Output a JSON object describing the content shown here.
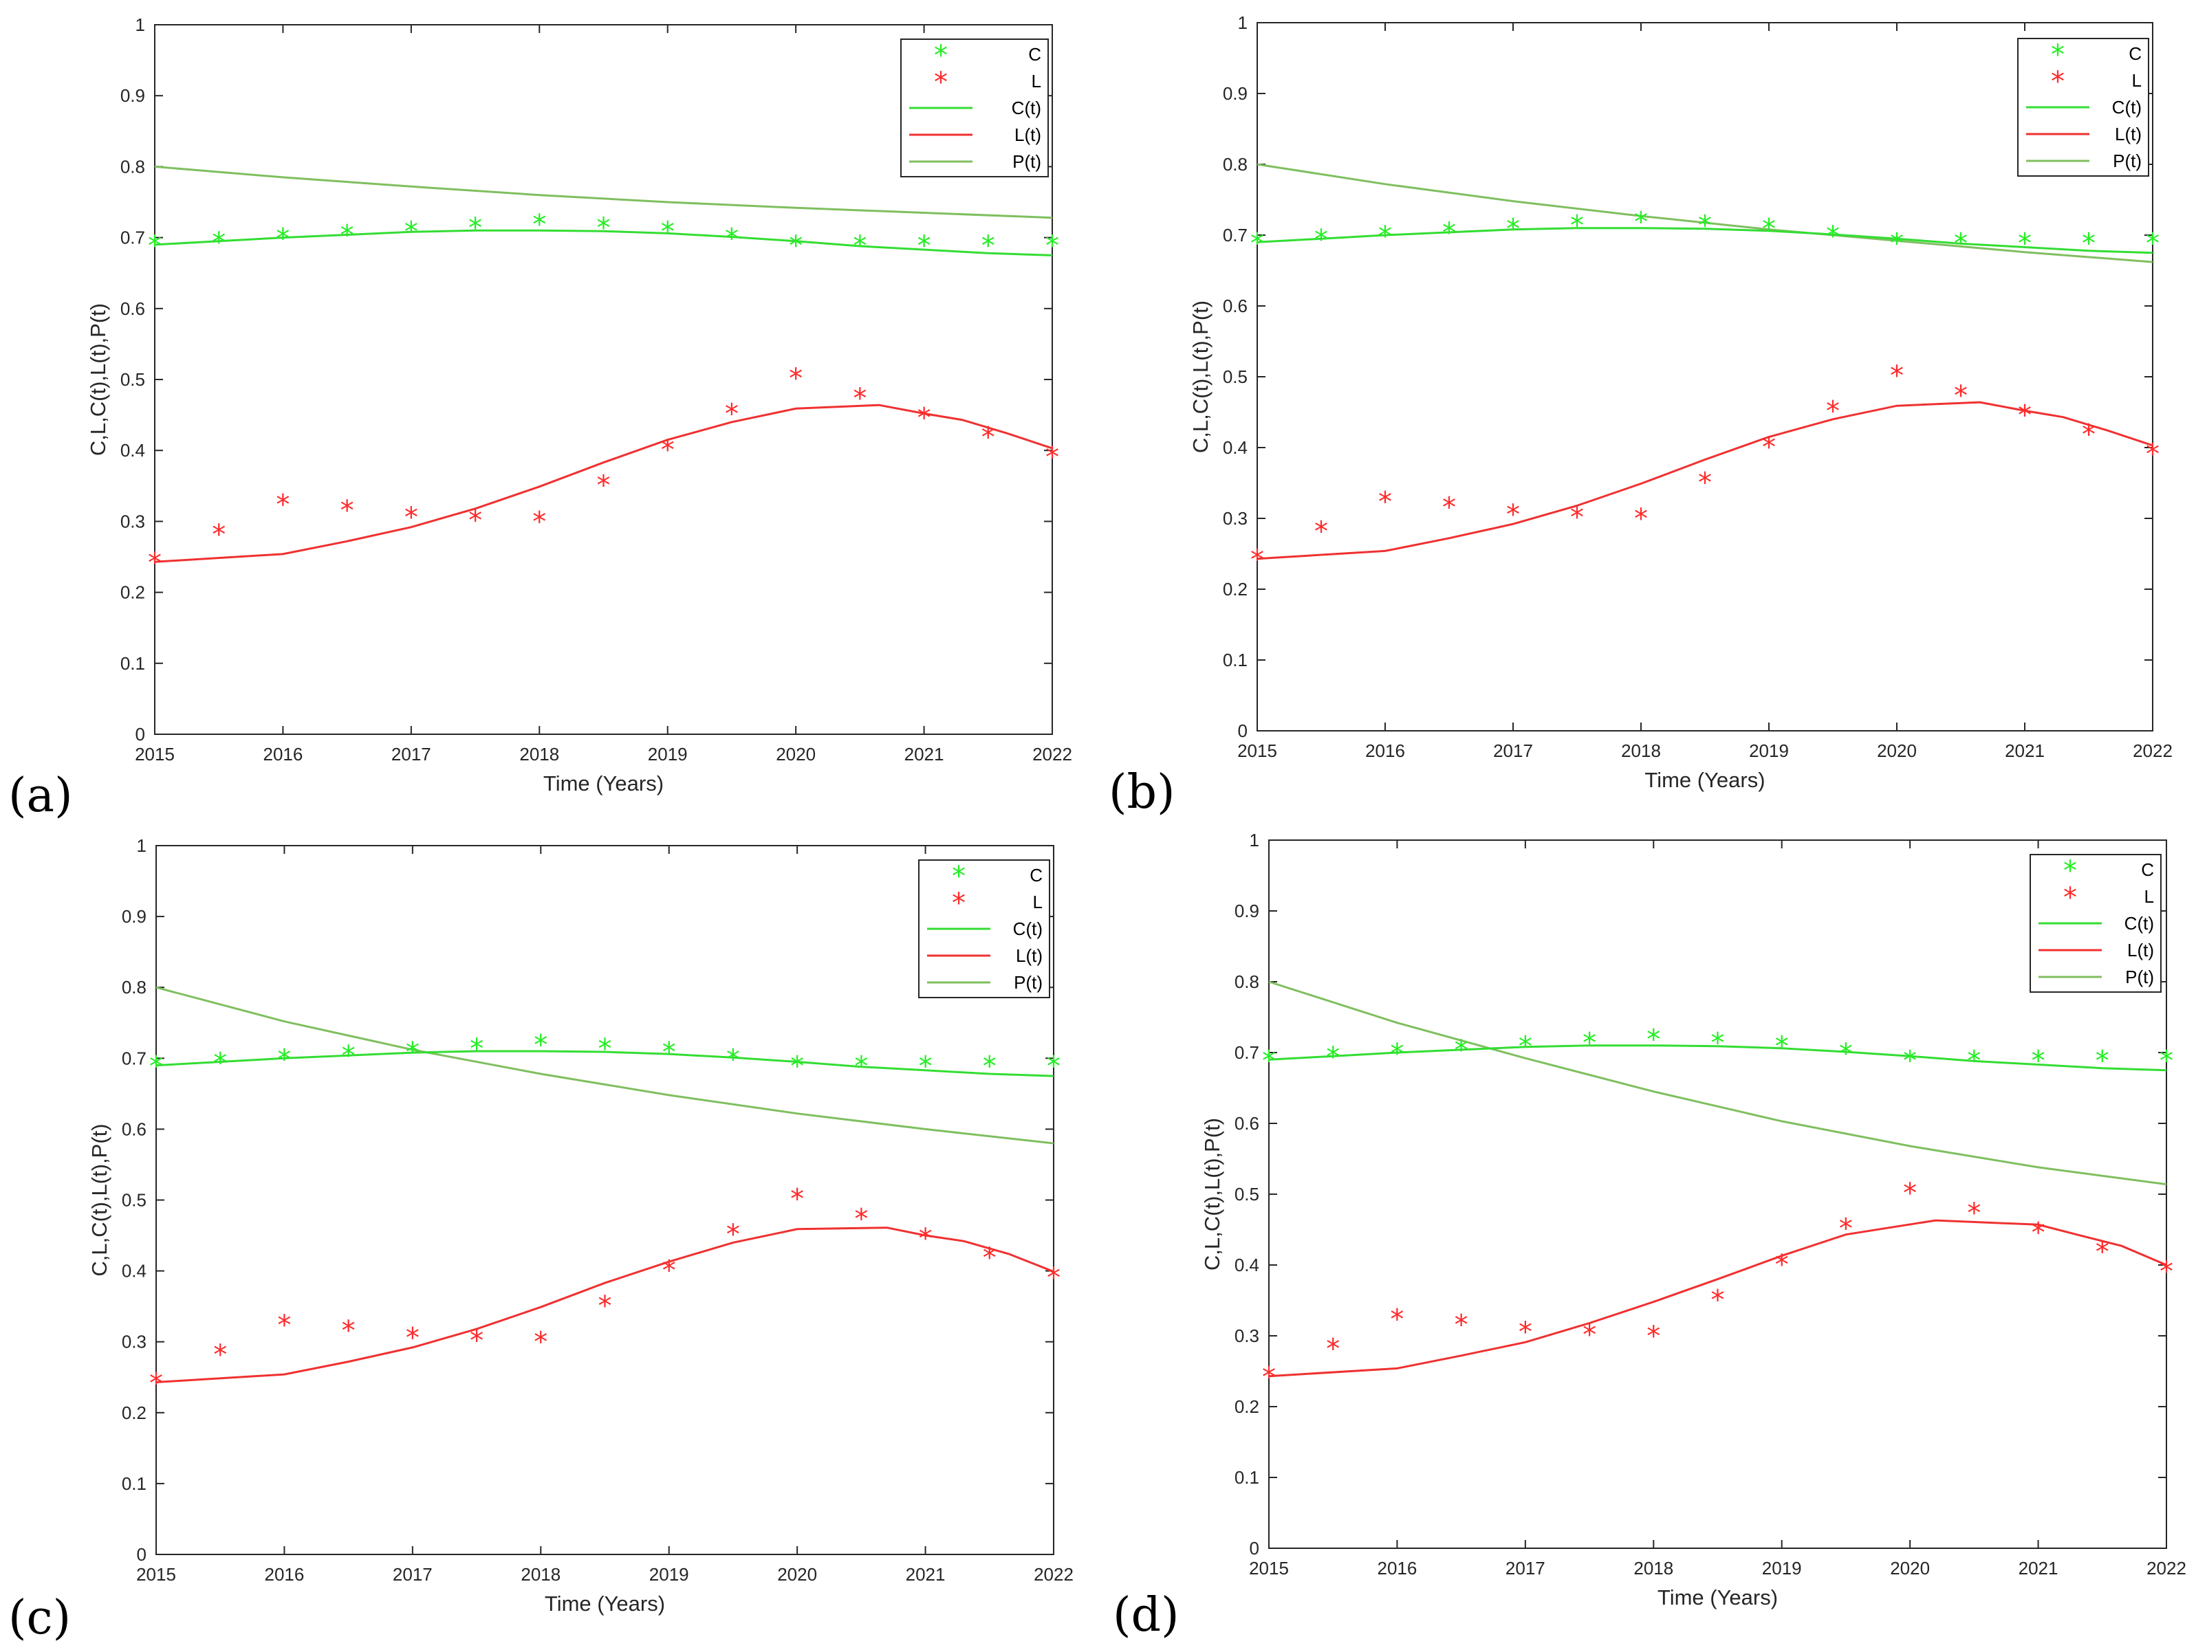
{
  "colors": {
    "C": "#22ee22",
    "L": "#ff2a2a",
    "Ct": "#33dd33",
    "Lt": "#f03030",
    "Pt": "#7fbf5f",
    "axis": "#262626"
  },
  "chart_data": [
    {
      "type": "line",
      "panel_label": "(a)",
      "xlabel": "Time (Years)",
      "ylabel": "C,L,C(t),L(t),P(t)",
      "xlim": [
        2015,
        2022
      ],
      "ylim": [
        0,
        1
      ],
      "xticks": [
        "2015",
        "2016",
        "2017",
        "2018",
        "2019",
        "2020",
        "2021",
        "2022"
      ],
      "yticks": [
        "0",
        "0.1",
        "0.2",
        "0.3",
        "0.4",
        "0.5",
        "0.6",
        "0.7",
        "0.8",
        "0.9",
        "1"
      ],
      "legend_position": "top-right",
      "series": [
        {
          "name": "C",
          "kind": "marker",
          "color_key": "C",
          "x": [
            2015,
            2015.5,
            2016,
            2016.5,
            2017,
            2017.5,
            2018,
            2018.5,
            2019,
            2019.5,
            2020,
            2020.5,
            2021,
            2021.5,
            2022
          ],
          "y": [
            0.69,
            0.695,
            0.7,
            0.705,
            0.71,
            0.715,
            0.72,
            0.715,
            0.71,
            0.7,
            0.69,
            0.69,
            0.69,
            0.69,
            0.69
          ]
        },
        {
          "name": "L",
          "kind": "marker",
          "color_key": "L",
          "x": [
            2015,
            2015.5,
            2016,
            2016.5,
            2017,
            2017.5,
            2018,
            2018.5,
            2019,
            2019.5,
            2020,
            2020.5,
            2021,
            2021.5,
            2022
          ],
          "y": [
            0.243,
            0.283,
            0.325,
            0.317,
            0.307,
            0.303,
            0.301,
            0.352,
            0.402,
            0.453,
            0.503,
            0.475,
            0.447,
            0.42,
            0.392
          ]
        },
        {
          "name": "C(t)",
          "kind": "line",
          "color_key": "Ct",
          "x": [
            2015,
            2015.5,
            2016,
            2016.5,
            2017,
            2017.5,
            2018,
            2018.5,
            2019,
            2019.5,
            2020,
            2020.5,
            2021,
            2021.5,
            2022
          ],
          "y": [
            0.69,
            0.695,
            0.7,
            0.704,
            0.708,
            0.71,
            0.71,
            0.709,
            0.706,
            0.701,
            0.695,
            0.688,
            0.683,
            0.678,
            0.675
          ]
        },
        {
          "name": "L(t)",
          "kind": "line",
          "color_key": "Lt",
          "x": [
            2015,
            2016,
            2016.5,
            2017,
            2017.5,
            2018,
            2018.5,
            2019,
            2019.5,
            2020,
            2020.65,
            2021,
            2021.3,
            2021.65,
            2022
          ],
          "y": [
            0.243,
            0.254,
            0.272,
            0.292,
            0.318,
            0.349,
            0.383,
            0.415,
            0.44,
            0.459,
            0.464,
            0.452,
            0.443,
            0.424,
            0.403
          ]
        },
        {
          "name": "P(t)",
          "kind": "line",
          "color_key": "Pt",
          "x": [
            2015,
            2016,
            2017,
            2018,
            2019,
            2020,
            2021,
            2022
          ],
          "y": [
            0.8,
            0.785,
            0.772,
            0.76,
            0.75,
            0.742,
            0.735,
            0.728
          ]
        }
      ]
    },
    {
      "type": "line",
      "panel_label": "(b)",
      "xlabel": "Time (Years)",
      "ylabel": "C,L,C(t),L(t),P(t)",
      "xlim": [
        2015,
        2022
      ],
      "ylim": [
        0,
        1
      ],
      "xticks": [
        "2015",
        "2016",
        "2017",
        "2018",
        "2019",
        "2020",
        "2021",
        "2022"
      ],
      "yticks": [
        "0",
        "0.1",
        "0.2",
        "0.3",
        "0.4",
        "0.5",
        "0.6",
        "0.7",
        "0.8",
        "0.9",
        "1"
      ],
      "legend_position": "top-right",
      "series": [
        {
          "name": "C",
          "kind": "marker",
          "color_key": "C",
          "x": [
            2015,
            2015.5,
            2016,
            2016.5,
            2017,
            2017.5,
            2018,
            2018.5,
            2019,
            2019.5,
            2020,
            2020.5,
            2021,
            2021.5,
            2022
          ],
          "y": [
            0.69,
            0.695,
            0.7,
            0.705,
            0.71,
            0.715,
            0.72,
            0.715,
            0.71,
            0.7,
            0.69,
            0.69,
            0.69,
            0.69,
            0.69
          ]
        },
        {
          "name": "L",
          "kind": "marker",
          "color_key": "L",
          "x": [
            2015,
            2015.5,
            2016,
            2016.5,
            2017,
            2017.5,
            2018,
            2018.5,
            2019,
            2019.5,
            2020,
            2020.5,
            2021,
            2021.5,
            2022
          ],
          "y": [
            0.243,
            0.283,
            0.325,
            0.317,
            0.307,
            0.303,
            0.301,
            0.352,
            0.402,
            0.453,
            0.503,
            0.475,
            0.447,
            0.42,
            0.392
          ]
        },
        {
          "name": "C(t)",
          "kind": "line",
          "color_key": "Ct",
          "x": [
            2015,
            2015.5,
            2016,
            2016.5,
            2017,
            2017.5,
            2018,
            2018.5,
            2019,
            2019.5,
            2020,
            2020.5,
            2021,
            2021.5,
            2022
          ],
          "y": [
            0.69,
            0.695,
            0.7,
            0.704,
            0.708,
            0.71,
            0.71,
            0.709,
            0.706,
            0.701,
            0.695,
            0.688,
            0.683,
            0.678,
            0.675
          ]
        },
        {
          "name": "L(t)",
          "kind": "line",
          "color_key": "Lt",
          "x": [
            2015,
            2016,
            2016.5,
            2017,
            2017.5,
            2018,
            2018.5,
            2019,
            2019.5,
            2020,
            2020.65,
            2021,
            2021.3,
            2021.65,
            2022
          ],
          "y": [
            0.243,
            0.254,
            0.272,
            0.292,
            0.318,
            0.349,
            0.383,
            0.415,
            0.44,
            0.459,
            0.464,
            0.452,
            0.443,
            0.424,
            0.403
          ]
        },
        {
          "name": "P(t)",
          "kind": "line",
          "color_key": "Pt",
          "x": [
            2015,
            2016,
            2017,
            2018,
            2019,
            2020,
            2021,
            2022
          ],
          "y": [
            0.8,
            0.772,
            0.748,
            0.727,
            0.708,
            0.692,
            0.676,
            0.662
          ]
        }
      ]
    },
    {
      "type": "line",
      "panel_label": "(c)",
      "xlabel": "Time (Years)",
      "ylabel": "C,L,C(t),L(t),P(t)",
      "xlim": [
        2015,
        2022
      ],
      "ylim": [
        0,
        1
      ],
      "xticks": [
        "2015",
        "2016",
        "2017",
        "2018",
        "2019",
        "2020",
        "2021",
        "2022"
      ],
      "yticks": [
        "0",
        "0.1",
        "0.2",
        "0.3",
        "0.4",
        "0.5",
        "0.6",
        "0.7",
        "0.8",
        "0.9",
        "1"
      ],
      "legend_position": "top-right",
      "series": [
        {
          "name": "C",
          "kind": "marker",
          "color_key": "C",
          "x": [
            2015,
            2015.5,
            2016,
            2016.5,
            2017,
            2017.5,
            2018,
            2018.5,
            2019,
            2019.5,
            2020,
            2020.5,
            2021,
            2021.5,
            2022
          ],
          "y": [
            0.69,
            0.695,
            0.7,
            0.705,
            0.71,
            0.715,
            0.72,
            0.715,
            0.71,
            0.7,
            0.69,
            0.69,
            0.69,
            0.69,
            0.69
          ]
        },
        {
          "name": "L",
          "kind": "marker",
          "color_key": "L",
          "x": [
            2015,
            2015.5,
            2016,
            2016.5,
            2017,
            2017.5,
            2018,
            2018.5,
            2019,
            2019.5,
            2020,
            2020.5,
            2021,
            2021.5,
            2022
          ],
          "y": [
            0.243,
            0.283,
            0.325,
            0.317,
            0.307,
            0.303,
            0.301,
            0.352,
            0.402,
            0.453,
            0.503,
            0.475,
            0.447,
            0.42,
            0.392
          ]
        },
        {
          "name": "C(t)",
          "kind": "line",
          "color_key": "Ct",
          "x": [
            2015,
            2015.5,
            2016,
            2016.5,
            2017,
            2017.5,
            2018,
            2018.5,
            2019,
            2019.5,
            2020,
            2020.5,
            2021,
            2021.5,
            2022
          ],
          "y": [
            0.69,
            0.695,
            0.7,
            0.704,
            0.708,
            0.71,
            0.71,
            0.709,
            0.706,
            0.701,
            0.695,
            0.688,
            0.683,
            0.678,
            0.675
          ]
        },
        {
          "name": "L(t)",
          "kind": "line",
          "color_key": "Lt",
          "x": [
            2015,
            2016,
            2016.5,
            2017,
            2017.5,
            2018,
            2018.5,
            2019,
            2019.5,
            2020,
            2020.7,
            2021,
            2021.3,
            2021.65,
            2022
          ],
          "y": [
            0.243,
            0.254,
            0.272,
            0.292,
            0.318,
            0.349,
            0.383,
            0.413,
            0.44,
            0.459,
            0.461,
            0.45,
            0.442,
            0.424,
            0.399
          ]
        },
        {
          "name": "P(t)",
          "kind": "line",
          "color_key": "Pt",
          "x": [
            2015,
            2016,
            2017,
            2018,
            2019,
            2020,
            2021,
            2022
          ],
          "y": [
            0.8,
            0.752,
            0.712,
            0.678,
            0.648,
            0.622,
            0.6,
            0.58
          ]
        }
      ]
    },
    {
      "type": "line",
      "panel_label": "(d)",
      "xlabel": "Time (Years)",
      "ylabel": "C,L,C(t),L(t),P(t)",
      "xlim": [
        2015,
        2022
      ],
      "ylim": [
        0,
        1
      ],
      "xticks": [
        "2015",
        "2016",
        "2017",
        "2018",
        "2019",
        "2020",
        "2021",
        "2022"
      ],
      "yticks": [
        "0",
        "0.1",
        "0.2",
        "0.3",
        "0.4",
        "0.5",
        "0.6",
        "0.7",
        "0.8",
        "0.9",
        "1"
      ],
      "legend_position": "top-right",
      "series": [
        {
          "name": "C",
          "kind": "marker",
          "color_key": "C",
          "x": [
            2015,
            2015.5,
            2016,
            2016.5,
            2017,
            2017.5,
            2018,
            2018.5,
            2019,
            2019.5,
            2020,
            2020.5,
            2021,
            2021.5,
            2022
          ],
          "y": [
            0.69,
            0.695,
            0.7,
            0.705,
            0.71,
            0.715,
            0.72,
            0.715,
            0.71,
            0.7,
            0.69,
            0.69,
            0.69,
            0.69,
            0.69
          ]
        },
        {
          "name": "L",
          "kind": "marker",
          "color_key": "L",
          "x": [
            2015,
            2015.5,
            2016,
            2016.5,
            2017,
            2017.5,
            2018,
            2018.5,
            2019,
            2019.5,
            2020,
            2020.5,
            2021,
            2021.5,
            2022
          ],
          "y": [
            0.243,
            0.283,
            0.325,
            0.317,
            0.307,
            0.303,
            0.301,
            0.352,
            0.402,
            0.453,
            0.503,
            0.475,
            0.447,
            0.42,
            0.392
          ]
        },
        {
          "name": "C(t)",
          "kind": "line",
          "color_key": "Ct",
          "x": [
            2015,
            2015.5,
            2016,
            2016.5,
            2017,
            2017.5,
            2018,
            2018.5,
            2019,
            2019.5,
            2020,
            2020.5,
            2021,
            2021.5,
            2022
          ],
          "y": [
            0.69,
            0.695,
            0.7,
            0.704,
            0.708,
            0.71,
            0.71,
            0.709,
            0.706,
            0.701,
            0.695,
            0.688,
            0.683,
            0.678,
            0.675
          ]
        },
        {
          "name": "L(t)",
          "kind": "line",
          "color_key": "Lt",
          "x": [
            2015,
            2016,
            2016.5,
            2017,
            2017.5,
            2018,
            2018.5,
            2019,
            2019.5,
            2020.2,
            2021,
            2021.3,
            2021.65,
            2022
          ],
          "y": [
            0.243,
            0.254,
            0.272,
            0.291,
            0.318,
            0.348,
            0.38,
            0.413,
            0.443,
            0.463,
            0.457,
            0.443,
            0.427,
            0.4
          ]
        },
        {
          "name": "P(t)",
          "kind": "line",
          "color_key": "Pt",
          "x": [
            2015,
            2016,
            2017,
            2018,
            2019,
            2020,
            2021,
            2022
          ],
          "y": [
            0.8,
            0.742,
            0.692,
            0.645,
            0.603,
            0.568,
            0.538,
            0.514
          ]
        }
      ]
    }
  ]
}
